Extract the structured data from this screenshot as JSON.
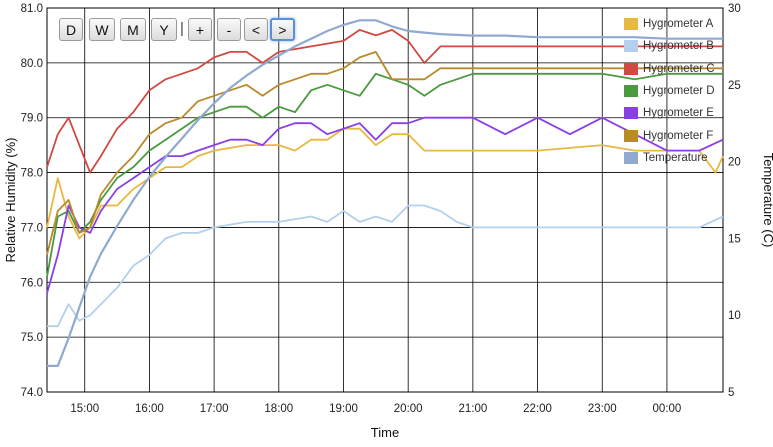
{
  "chart_data": {
    "type": "line",
    "xlabel": "Time",
    "ylabel_left": "Relative Humidity (%)",
    "ylabel_right": "Temperature (C)",
    "xlim": [
      "14:25",
      "00:52"
    ],
    "ylim_left": [
      74.0,
      81.0
    ],
    "ylim_right": [
      5,
      30
    ],
    "x_ticks": [
      "15:00",
      "16:00",
      "17:00",
      "18:00",
      "19:00",
      "20:00",
      "21:00",
      "22:00",
      "23:00",
      "00:00"
    ],
    "y_ticks_left": [
      "74.0",
      "75.0",
      "76.0",
      "77.0",
      "78.0",
      "79.0",
      "80.0",
      "81.0"
    ],
    "y_ticks_right": [
      "5",
      "10",
      "15",
      "20",
      "25",
      "30"
    ],
    "grid": true,
    "legend_position": "top-right",
    "series": [
      {
        "name": "Hygrometer A",
        "color": "#e8b842",
        "axis": "left",
        "points": [
          [
            "14:25",
            77.0
          ],
          [
            "14:35",
            77.9
          ],
          [
            "14:45",
            77.2
          ],
          [
            "14:55",
            76.8
          ],
          [
            "15:05",
            77.0
          ],
          [
            "15:15",
            77.4
          ],
          [
            "15:30",
            77.4
          ],
          [
            "15:45",
            77.7
          ],
          [
            "16:00",
            77.9
          ],
          [
            "16:15",
            78.1
          ],
          [
            "16:30",
            78.1
          ],
          [
            "16:45",
            78.3
          ],
          [
            "17:00",
            78.4
          ],
          [
            "17:30",
            78.5
          ],
          [
            "18:00",
            78.5
          ],
          [
            "18:15",
            78.4
          ],
          [
            "18:30",
            78.6
          ],
          [
            "18:45",
            78.6
          ],
          [
            "19:00",
            78.8
          ],
          [
            "19:15",
            78.8
          ],
          [
            "19:30",
            78.5
          ],
          [
            "19:45",
            78.7
          ],
          [
            "20:00",
            78.7
          ],
          [
            "20:15",
            78.4
          ],
          [
            "20:30",
            78.4
          ],
          [
            "21:00",
            78.4
          ],
          [
            "22:00",
            78.4
          ],
          [
            "23:00",
            78.5
          ],
          [
            "23:30",
            78.4
          ],
          [
            "00:00",
            78.4
          ],
          [
            "00:30",
            78.4
          ],
          [
            "00:45",
            78.0
          ],
          [
            "00:52",
            78.3
          ]
        ]
      },
      {
        "name": "Hygrometer B",
        "color": "#b3d1ee",
        "axis": "left",
        "points": [
          [
            "14:25",
            75.2
          ],
          [
            "14:35",
            75.2
          ],
          [
            "14:45",
            75.6
          ],
          [
            "14:55",
            75.3
          ],
          [
            "15:05",
            75.4
          ],
          [
            "15:15",
            75.6
          ],
          [
            "15:30",
            75.9
          ],
          [
            "15:45",
            76.3
          ],
          [
            "16:00",
            76.5
          ],
          [
            "16:15",
            76.8
          ],
          [
            "16:30",
            76.9
          ],
          [
            "16:45",
            76.9
          ],
          [
            "17:00",
            77.0
          ],
          [
            "17:30",
            77.1
          ],
          [
            "18:00",
            77.1
          ],
          [
            "18:30",
            77.2
          ],
          [
            "18:45",
            77.1
          ],
          [
            "19:00",
            77.3
          ],
          [
            "19:15",
            77.1
          ],
          [
            "19:30",
            77.2
          ],
          [
            "19:45",
            77.1
          ],
          [
            "20:00",
            77.4
          ],
          [
            "20:15",
            77.4
          ],
          [
            "20:30",
            77.3
          ],
          [
            "20:45",
            77.1
          ],
          [
            "21:00",
            77.0
          ],
          [
            "22:00",
            77.0
          ],
          [
            "23:00",
            77.0
          ],
          [
            "23:30",
            77.0
          ],
          [
            "00:00",
            77.0
          ],
          [
            "00:30",
            77.0
          ],
          [
            "00:52",
            77.2
          ]
        ]
      },
      {
        "name": "Hygrometer C",
        "color": "#d04a42",
        "axis": "left",
        "points": [
          [
            "14:25",
            78.1
          ],
          [
            "14:35",
            78.7
          ],
          [
            "14:45",
            79.0
          ],
          [
            "14:55",
            78.5
          ],
          [
            "15:05",
            78.0
          ],
          [
            "15:15",
            78.3
          ],
          [
            "15:30",
            78.8
          ],
          [
            "15:45",
            79.1
          ],
          [
            "16:00",
            79.5
          ],
          [
            "16:15",
            79.7
          ],
          [
            "16:30",
            79.8
          ],
          [
            "16:45",
            79.9
          ],
          [
            "17:00",
            80.1
          ],
          [
            "17:15",
            80.2
          ],
          [
            "17:30",
            80.2
          ],
          [
            "17:45",
            80.0
          ],
          [
            "18:00",
            80.2
          ],
          [
            "18:30",
            80.3
          ],
          [
            "19:00",
            80.4
          ],
          [
            "19:15",
            80.6
          ],
          [
            "19:30",
            80.5
          ],
          [
            "19:45",
            80.6
          ],
          [
            "20:00",
            80.4
          ],
          [
            "20:15",
            80.0
          ],
          [
            "20:30",
            80.3
          ],
          [
            "21:00",
            80.3
          ],
          [
            "22:00",
            80.3
          ],
          [
            "23:00",
            80.3
          ],
          [
            "23:30",
            80.3
          ],
          [
            "00:00",
            80.3
          ],
          [
            "00:30",
            80.3
          ],
          [
            "00:52",
            80.3
          ]
        ]
      },
      {
        "name": "Hygrometer D",
        "color": "#4a9a3e",
        "axis": "left",
        "points": [
          [
            "14:25",
            76.1
          ],
          [
            "14:35",
            77.2
          ],
          [
            "14:45",
            77.3
          ],
          [
            "14:55",
            76.9
          ],
          [
            "15:05",
            77.1
          ],
          [
            "15:15",
            77.5
          ],
          [
            "15:30",
            77.9
          ],
          [
            "15:45",
            78.1
          ],
          [
            "16:00",
            78.4
          ],
          [
            "16:15",
            78.6
          ],
          [
            "16:30",
            78.8
          ],
          [
            "16:45",
            79.0
          ],
          [
            "17:00",
            79.1
          ],
          [
            "17:15",
            79.2
          ],
          [
            "17:30",
            79.2
          ],
          [
            "17:45",
            79.0
          ],
          [
            "18:00",
            79.2
          ],
          [
            "18:15",
            79.1
          ],
          [
            "18:30",
            79.5
          ],
          [
            "18:45",
            79.6
          ],
          [
            "19:00",
            79.5
          ],
          [
            "19:15",
            79.4
          ],
          [
            "19:30",
            79.8
          ],
          [
            "19:45",
            79.7
          ],
          [
            "20:00",
            79.6
          ],
          [
            "20:15",
            79.4
          ],
          [
            "20:30",
            79.6
          ],
          [
            "21:00",
            79.8
          ],
          [
            "22:00",
            79.8
          ],
          [
            "23:00",
            79.8
          ],
          [
            "23:30",
            79.7
          ],
          [
            "00:00",
            79.8
          ],
          [
            "00:30",
            79.8
          ],
          [
            "00:52",
            79.8
          ]
        ]
      },
      {
        "name": "Hygrometer E",
        "color": "#8a3ee8",
        "axis": "left",
        "points": [
          [
            "14:25",
            75.8
          ],
          [
            "14:35",
            76.5
          ],
          [
            "14:45",
            77.4
          ],
          [
            "14:55",
            77.0
          ],
          [
            "15:05",
            76.9
          ],
          [
            "15:15",
            77.3
          ],
          [
            "15:30",
            77.7
          ],
          [
            "15:45",
            77.9
          ],
          [
            "16:00",
            78.1
          ],
          [
            "16:15",
            78.3
          ],
          [
            "16:30",
            78.3
          ],
          [
            "16:45",
            78.4
          ],
          [
            "17:00",
            78.5
          ],
          [
            "17:15",
            78.6
          ],
          [
            "17:30",
            78.6
          ],
          [
            "17:45",
            78.5
          ],
          [
            "18:00",
            78.8
          ],
          [
            "18:15",
            78.9
          ],
          [
            "18:30",
            78.9
          ],
          [
            "18:45",
            78.7
          ],
          [
            "19:00",
            78.8
          ],
          [
            "19:15",
            78.9
          ],
          [
            "19:30",
            78.6
          ],
          [
            "19:45",
            78.9
          ],
          [
            "20:00",
            78.9
          ],
          [
            "20:15",
            79.0
          ],
          [
            "20:30",
            79.0
          ],
          [
            "21:00",
            79.0
          ],
          [
            "21:30",
            78.7
          ],
          [
            "22:00",
            79.0
          ],
          [
            "22:30",
            78.7
          ],
          [
            "23:00",
            79.0
          ],
          [
            "23:30",
            78.7
          ],
          [
            "00:00",
            78.4
          ],
          [
            "00:30",
            78.4
          ],
          [
            "00:52",
            78.6
          ]
        ]
      },
      {
        "name": "Hygrometer F",
        "color": "#b88a2a",
        "axis": "left",
        "points": [
          [
            "14:25",
            76.5
          ],
          [
            "14:35",
            77.3
          ],
          [
            "14:45",
            77.5
          ],
          [
            "14:55",
            76.9
          ],
          [
            "15:05",
            77.0
          ],
          [
            "15:15",
            77.6
          ],
          [
            "15:30",
            78.0
          ],
          [
            "15:45",
            78.3
          ],
          [
            "16:00",
            78.7
          ],
          [
            "16:15",
            78.9
          ],
          [
            "16:30",
            79.0
          ],
          [
            "16:45",
            79.3
          ],
          [
            "17:00",
            79.4
          ],
          [
            "17:15",
            79.5
          ],
          [
            "17:30",
            79.6
          ],
          [
            "17:45",
            79.4
          ],
          [
            "18:00",
            79.6
          ],
          [
            "18:15",
            79.7
          ],
          [
            "18:30",
            79.8
          ],
          [
            "18:45",
            79.8
          ],
          [
            "19:00",
            79.9
          ],
          [
            "19:15",
            80.1
          ],
          [
            "19:30",
            80.2
          ],
          [
            "19:45",
            79.7
          ],
          [
            "20:00",
            79.7
          ],
          [
            "20:15",
            79.7
          ],
          [
            "20:30",
            79.9
          ],
          [
            "21:00",
            79.9
          ],
          [
            "22:00",
            79.9
          ],
          [
            "23:00",
            79.9
          ],
          [
            "23:30",
            79.9
          ],
          [
            "00:00",
            79.9
          ],
          [
            "00:30",
            79.9
          ],
          [
            "00:52",
            79.9
          ]
        ]
      },
      {
        "name": "Temperature",
        "color": "#8fa9cf",
        "axis": "right",
        "points": [
          [
            "14:25",
            6.7
          ],
          [
            "14:35",
            6.7
          ],
          [
            "14:45",
            8.5
          ],
          [
            "14:55",
            10.5
          ],
          [
            "15:05",
            12.5
          ],
          [
            "15:15",
            14.0
          ],
          [
            "15:30",
            15.8
          ],
          [
            "15:45",
            17.5
          ],
          [
            "16:00",
            19.0
          ],
          [
            "16:15",
            20.3
          ],
          [
            "16:30",
            21.5
          ],
          [
            "16:45",
            22.7
          ],
          [
            "17:00",
            23.8
          ],
          [
            "17:15",
            24.8
          ],
          [
            "17:30",
            25.6
          ],
          [
            "17:45",
            26.3
          ],
          [
            "18:00",
            26.9
          ],
          [
            "18:15",
            27.5
          ],
          [
            "18:30",
            28.0
          ],
          [
            "18:45",
            28.5
          ],
          [
            "19:00",
            28.9
          ],
          [
            "19:15",
            29.2
          ],
          [
            "19:30",
            29.2
          ],
          [
            "19:45",
            28.8
          ],
          [
            "20:00",
            28.5
          ],
          [
            "20:15",
            28.4
          ],
          [
            "20:30",
            28.3
          ],
          [
            "21:00",
            28.2
          ],
          [
            "21:30",
            28.2
          ],
          [
            "22:00",
            28.1
          ],
          [
            "22:30",
            28.1
          ],
          [
            "23:00",
            28.1
          ],
          [
            "23:30",
            28.1
          ],
          [
            "00:00",
            28.0
          ],
          [
            "00:30",
            28.0
          ],
          [
            "00:52",
            28.0
          ]
        ]
      }
    ]
  },
  "toolbar": {
    "buttons": [
      "D",
      "W",
      "M",
      "Y",
      "+",
      "-",
      "<",
      ">"
    ],
    "separator": "|"
  }
}
